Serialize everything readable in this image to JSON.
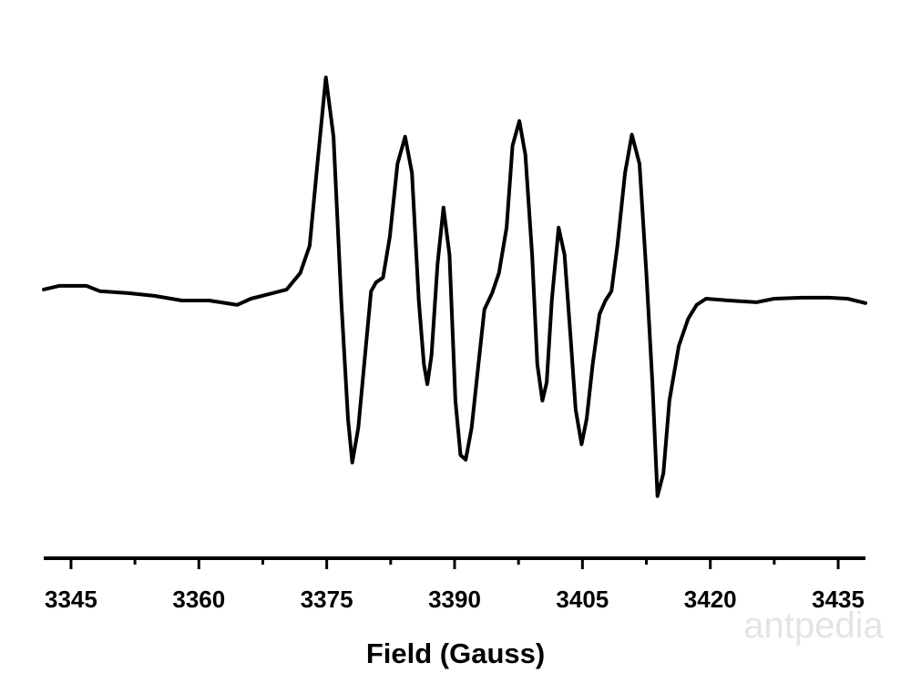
{
  "chart_data": {
    "type": "line",
    "xlabel": "Field (Gauss)",
    "watermark": "antpedia",
    "xlim": [
      3341.8,
      3438.2
    ],
    "ylim": [
      -1.31,
      1.25
    ],
    "xticks": [
      3345,
      3360,
      3375,
      3390,
      3405,
      3420,
      3435
    ],
    "series": [
      {
        "color": "#000000",
        "x": [
          3341.8,
          3343.6,
          3346.8,
          3348.4,
          3351.6,
          3354.8,
          3358.0,
          3361.2,
          3364.5,
          3366.1,
          3368.7,
          3370.3,
          3371.9,
          3373.0,
          3373.9,
          3374.9,
          3375.8,
          3376.7,
          3377.5,
          3378.0,
          3378.7,
          3379.4,
          3380.2,
          3380.8,
          3381.6,
          3382.4,
          3383.3,
          3384.2,
          3385.0,
          3385.8,
          3386.4,
          3386.8,
          3387.3,
          3388.0,
          3388.7,
          3389.4,
          3390.1,
          3390.7,
          3391.3,
          3392.0,
          3392.8,
          3393.5,
          3394.4,
          3395.2,
          3396.1,
          3396.8,
          3397.6,
          3398.3,
          3399.1,
          3399.7,
          3400.3,
          3400.8,
          3401.4,
          3402.2,
          3402.9,
          3403.6,
          3404.2,
          3404.9,
          3405.5,
          3406.2,
          3407.0,
          3407.7,
          3408.4,
          3409.1,
          3410.0,
          3410.8,
          3411.7,
          3412.5,
          3413.2,
          3413.8,
          3414.5,
          3415.2,
          3416.3,
          3417.4,
          3418.4,
          3419.5,
          3422.2,
          3425.4,
          3427.5,
          3430.7,
          3433.9,
          3436.1,
          3438.2
        ],
        "values": [
          0.032,
          0.05,
          0.05,
          0.023,
          0.014,
          0,
          -0.023,
          -0.023,
          -0.045,
          -0.014,
          0.014,
          0.032,
          0.114,
          0.25,
          0.659,
          1.091,
          0.795,
          -0.023,
          -0.614,
          -0.832,
          -0.659,
          -0.341,
          0.023,
          0.068,
          0.091,
          0.295,
          0.659,
          0.795,
          0.614,
          -0.023,
          -0.341,
          -0.441,
          -0.295,
          0.159,
          0.441,
          0.205,
          -0.523,
          -0.795,
          -0.818,
          -0.659,
          -0.341,
          -0.068,
          0.014,
          0.114,
          0.341,
          0.75,
          0.873,
          0.705,
          0.205,
          -0.341,
          -0.523,
          -0.432,
          -0.023,
          0.341,
          0.205,
          -0.205,
          -0.568,
          -0.741,
          -0.614,
          -0.341,
          -0.091,
          -0.023,
          0.023,
          0.25,
          0.614,
          0.805,
          0.659,
          0.114,
          -0.432,
          -1.0,
          -0.886,
          -0.523,
          -0.25,
          -0.114,
          -0.045,
          -0.014,
          -0.023,
          -0.032,
          -0.014,
          -0.009,
          -0.009,
          -0.014,
          -0.036
        ]
      }
    ]
  }
}
